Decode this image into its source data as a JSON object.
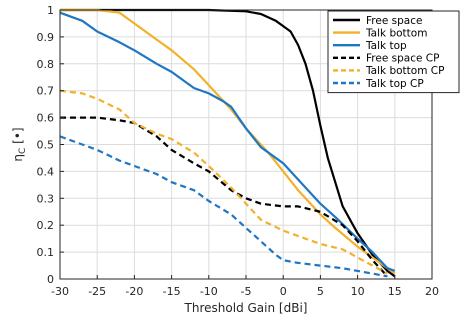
{
  "chart_data": {
    "type": "line",
    "xlabel": "Threshold Gain [dBi]",
    "ylabel_main": "η",
    "ylabel_sub": "C",
    "ylabel_unit": "[•]",
    "xlim": [
      -30,
      20
    ],
    "ylim": [
      0,
      1
    ],
    "xticks": [
      -30,
      -25,
      -20,
      -15,
      -10,
      -5,
      0,
      5,
      10,
      15,
      20
    ],
    "yticks": [
      0,
      0.1,
      0.2,
      0.3,
      0.4,
      0.5,
      0.6,
      0.7,
      0.8,
      0.9,
      1
    ],
    "grid": true,
    "legend_position": "top-right",
    "series": [
      {
        "name": "Free space",
        "color": "#000000",
        "dash": "solid",
        "x": [
          -30,
          -25,
          -20,
          -15,
          -10,
          -5,
          -3,
          -1,
          0,
          1,
          2,
          3,
          4,
          5,
          6,
          8,
          10,
          12,
          14,
          15
        ],
        "y": [
          1.0,
          1.0,
          1.0,
          1.0,
          1.0,
          0.995,
          0.985,
          0.96,
          0.94,
          0.92,
          0.87,
          0.8,
          0.7,
          0.57,
          0.45,
          0.27,
          0.17,
          0.09,
          0.03,
          0.01
        ]
      },
      {
        "name": "Talk bottom",
        "color": "#f2b12b",
        "dash": "solid",
        "x": [
          -30,
          -25,
          -22,
          -20,
          -17,
          -15,
          -12,
          -10,
          -7,
          -5,
          -2,
          0,
          2,
          5,
          7,
          10,
          12,
          14,
          15
        ],
        "y": [
          1.0,
          1.0,
          0.99,
          0.95,
          0.89,
          0.85,
          0.78,
          0.72,
          0.63,
          0.56,
          0.47,
          0.4,
          0.33,
          0.24,
          0.19,
          0.12,
          0.08,
          0.04,
          0.02
        ]
      },
      {
        "name": "Talk top",
        "color": "#1f77c4",
        "dash": "solid",
        "x": [
          -30,
          -27,
          -25,
          -22,
          -20,
          -17,
          -15,
          -12,
          -10,
          -8,
          -7,
          -5,
          -3,
          0,
          2,
          5,
          7,
          10,
          12,
          13,
          14,
          15
        ],
        "y": [
          0.99,
          0.96,
          0.92,
          0.88,
          0.85,
          0.8,
          0.77,
          0.71,
          0.69,
          0.66,
          0.64,
          0.56,
          0.49,
          0.43,
          0.37,
          0.28,
          0.23,
          0.15,
          0.1,
          0.07,
          0.04,
          0.03
        ]
      },
      {
        "name": "Free space CP",
        "color": "#000000",
        "dash": "dashed",
        "x": [
          -30,
          -25,
          -22,
          -20,
          -17,
          -15,
          -12,
          -10,
          -7,
          -5,
          -3,
          0,
          2,
          5,
          8,
          10,
          12,
          14
        ],
        "y": [
          0.6,
          0.6,
          0.59,
          0.58,
          0.53,
          0.48,
          0.43,
          0.4,
          0.33,
          0.3,
          0.28,
          0.27,
          0.27,
          0.25,
          0.2,
          0.14,
          0.07,
          0.01
        ]
      },
      {
        "name": "Talk bottom CP",
        "color": "#f2b12b",
        "dash": "dashed",
        "x": [
          -30,
          -27,
          -25,
          -22,
          -20,
          -17,
          -15,
          -12,
          -10,
          -7,
          -5,
          -3,
          0,
          3,
          5,
          8,
          10,
          12,
          14
        ],
        "y": [
          0.7,
          0.69,
          0.67,
          0.63,
          0.58,
          0.54,
          0.52,
          0.47,
          0.42,
          0.34,
          0.28,
          0.22,
          0.18,
          0.15,
          0.13,
          0.11,
          0.08,
          0.05,
          0.02
        ]
      },
      {
        "name": "Talk top CP",
        "color": "#1f77c4",
        "dash": "dashed",
        "x": [
          -30,
          -27,
          -25,
          -22,
          -20,
          -17,
          -15,
          -12,
          -10,
          -7,
          -5,
          -3,
          -1,
          0,
          2,
          5,
          8,
          10,
          12,
          14
        ],
        "y": [
          0.53,
          0.5,
          0.48,
          0.44,
          0.42,
          0.39,
          0.36,
          0.33,
          0.29,
          0.24,
          0.19,
          0.14,
          0.09,
          0.07,
          0.06,
          0.05,
          0.04,
          0.03,
          0.02,
          0.01
        ]
      }
    ]
  }
}
